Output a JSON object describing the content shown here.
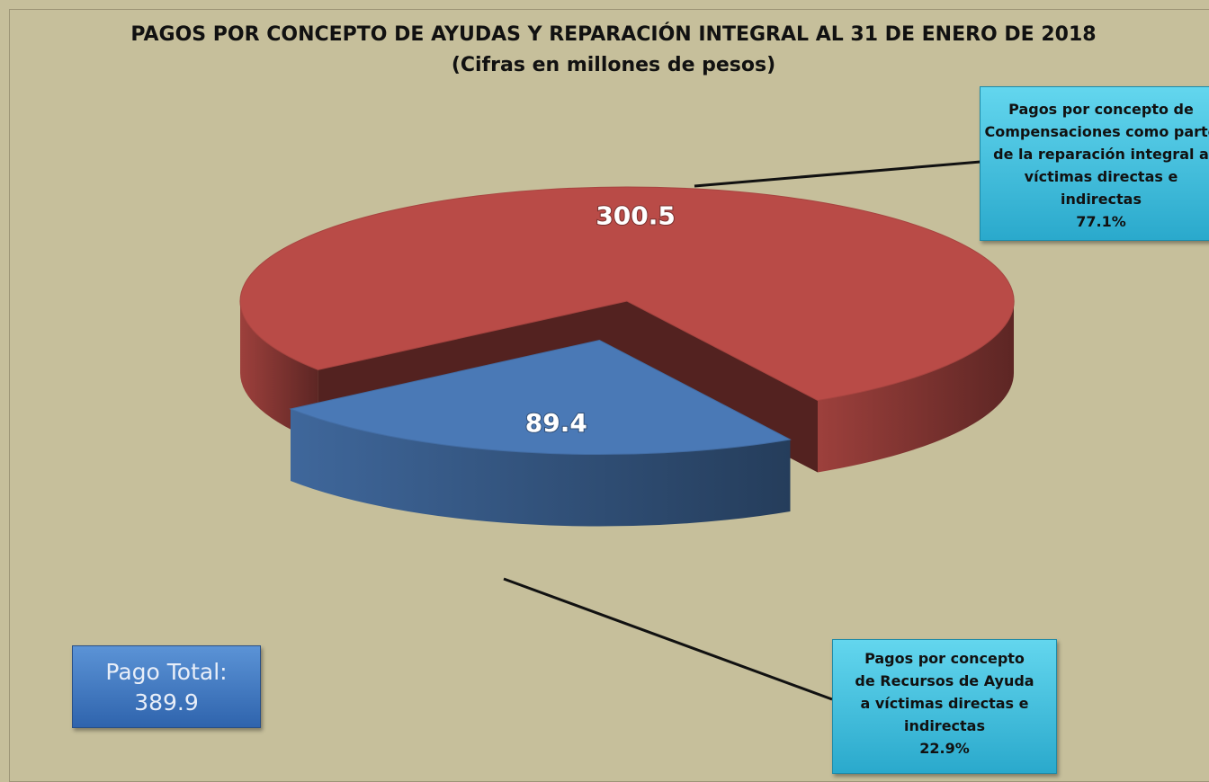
{
  "chart_data": {
    "type": "pie",
    "title": "PAGOS POR CONCEPTO DE AYUDAS Y REPARACIÓN INTEGRAL AL 31 DE ENERO DE 2018",
    "subtitle": "(Cifras en millones de pesos)",
    "categories": [
      "Pagos por concepto de Compensaciones como parte de la reparación integral a víctimas directas e indirectas",
      "Pagos por concepto de Recursos de Ayuda a víctimas directas e indirectas"
    ],
    "values": [
      300.5,
      89.4
    ],
    "colors": [
      "#b94b47",
      "#4a79b6"
    ],
    "percent_values": [
      77.1,
      22.9
    ],
    "percent_labels": [
      "77.1%",
      "22.9%"
    ],
    "total": {
      "label": "Pago  Total:",
      "value": 389.9
    }
  }
}
